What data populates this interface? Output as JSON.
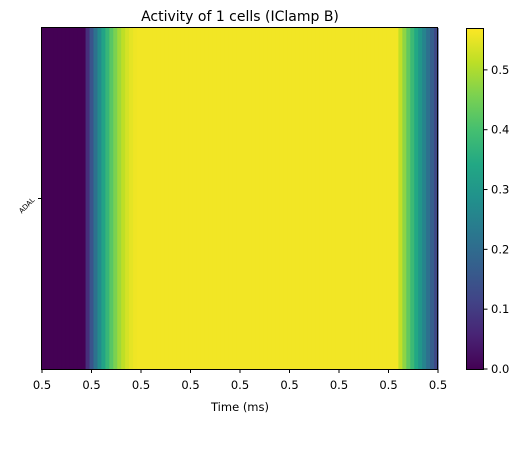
{
  "chart_data": {
    "type": "heatmap",
    "title": "Activity of 1 cells (IClamp B)",
    "xlabel": "Time (ms)",
    "ylabel": "",
    "row_labels": [
      "ADAL"
    ],
    "x_tick_labels": [
      "0.5",
      "0.5",
      "0.5",
      "0.5",
      "0.5",
      "0.5",
      "0.5",
      "0.5",
      "0.5"
    ],
    "colorbar": {
      "colormap": "viridis",
      "range": [
        0.0,
        0.57
      ],
      "ticks": [
        0.0,
        0.1,
        0.2,
        0.3,
        0.4,
        0.5
      ],
      "tick_labels": [
        "0.0",
        "0.1",
        "0.2",
        "0.3",
        "0.4",
        "0.5"
      ]
    },
    "profile": {
      "columns": 100,
      "baseline": 0.0,
      "plateau": 0.56,
      "onset_column": 11,
      "rise_columns": 14,
      "offset_column": 90,
      "decay_columns": 10
    }
  }
}
